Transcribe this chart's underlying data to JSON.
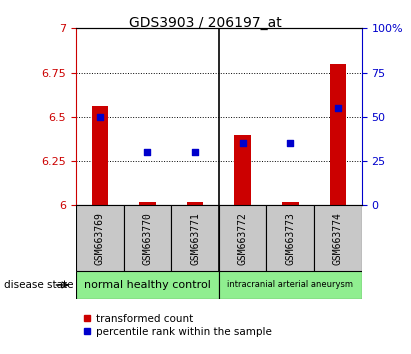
{
  "title": "GDS3903 / 206197_at",
  "samples": [
    "GSM663769",
    "GSM663770",
    "GSM663771",
    "GSM663772",
    "GSM663773",
    "GSM663774"
  ],
  "transformed_count": [
    6.56,
    6.02,
    6.02,
    6.4,
    6.02,
    6.8
  ],
  "percentile_rank": [
    50,
    30,
    30,
    35,
    35,
    55
  ],
  "ylim_left": [
    6.0,
    7.0
  ],
  "ylim_right": [
    0,
    100
  ],
  "yticks_left": [
    6.0,
    6.25,
    6.5,
    6.75,
    7.0
  ],
  "ytick_labels_left": [
    "6",
    "6.25",
    "6.5",
    "6.75",
    "7"
  ],
  "yticks_right": [
    0,
    25,
    50,
    75,
    100
  ],
  "ytick_labels_right": [
    "0",
    "25",
    "50",
    "75",
    "100%"
  ],
  "bar_color": "#cc0000",
  "dot_color": "#0000cc",
  "bar_bottom": 6.0,
  "bar_width": 0.35,
  "group1_label": "normal healthy control",
  "group2_label": "intracranial arterial aneurysm",
  "group_color": "#90ee90",
  "disease_state_label": "disease state",
  "left_axis_color": "#cc0000",
  "right_axis_color": "#0000cc",
  "sample_box_color": "#c8c8c8",
  "legend_red_label": "transformed count",
  "legend_blue_label": "percentile rank within the sample",
  "title_fontsize": 10,
  "tick_fontsize": 8,
  "sample_fontsize": 7,
  "group_fontsize": 8,
  "legend_fontsize": 7.5
}
